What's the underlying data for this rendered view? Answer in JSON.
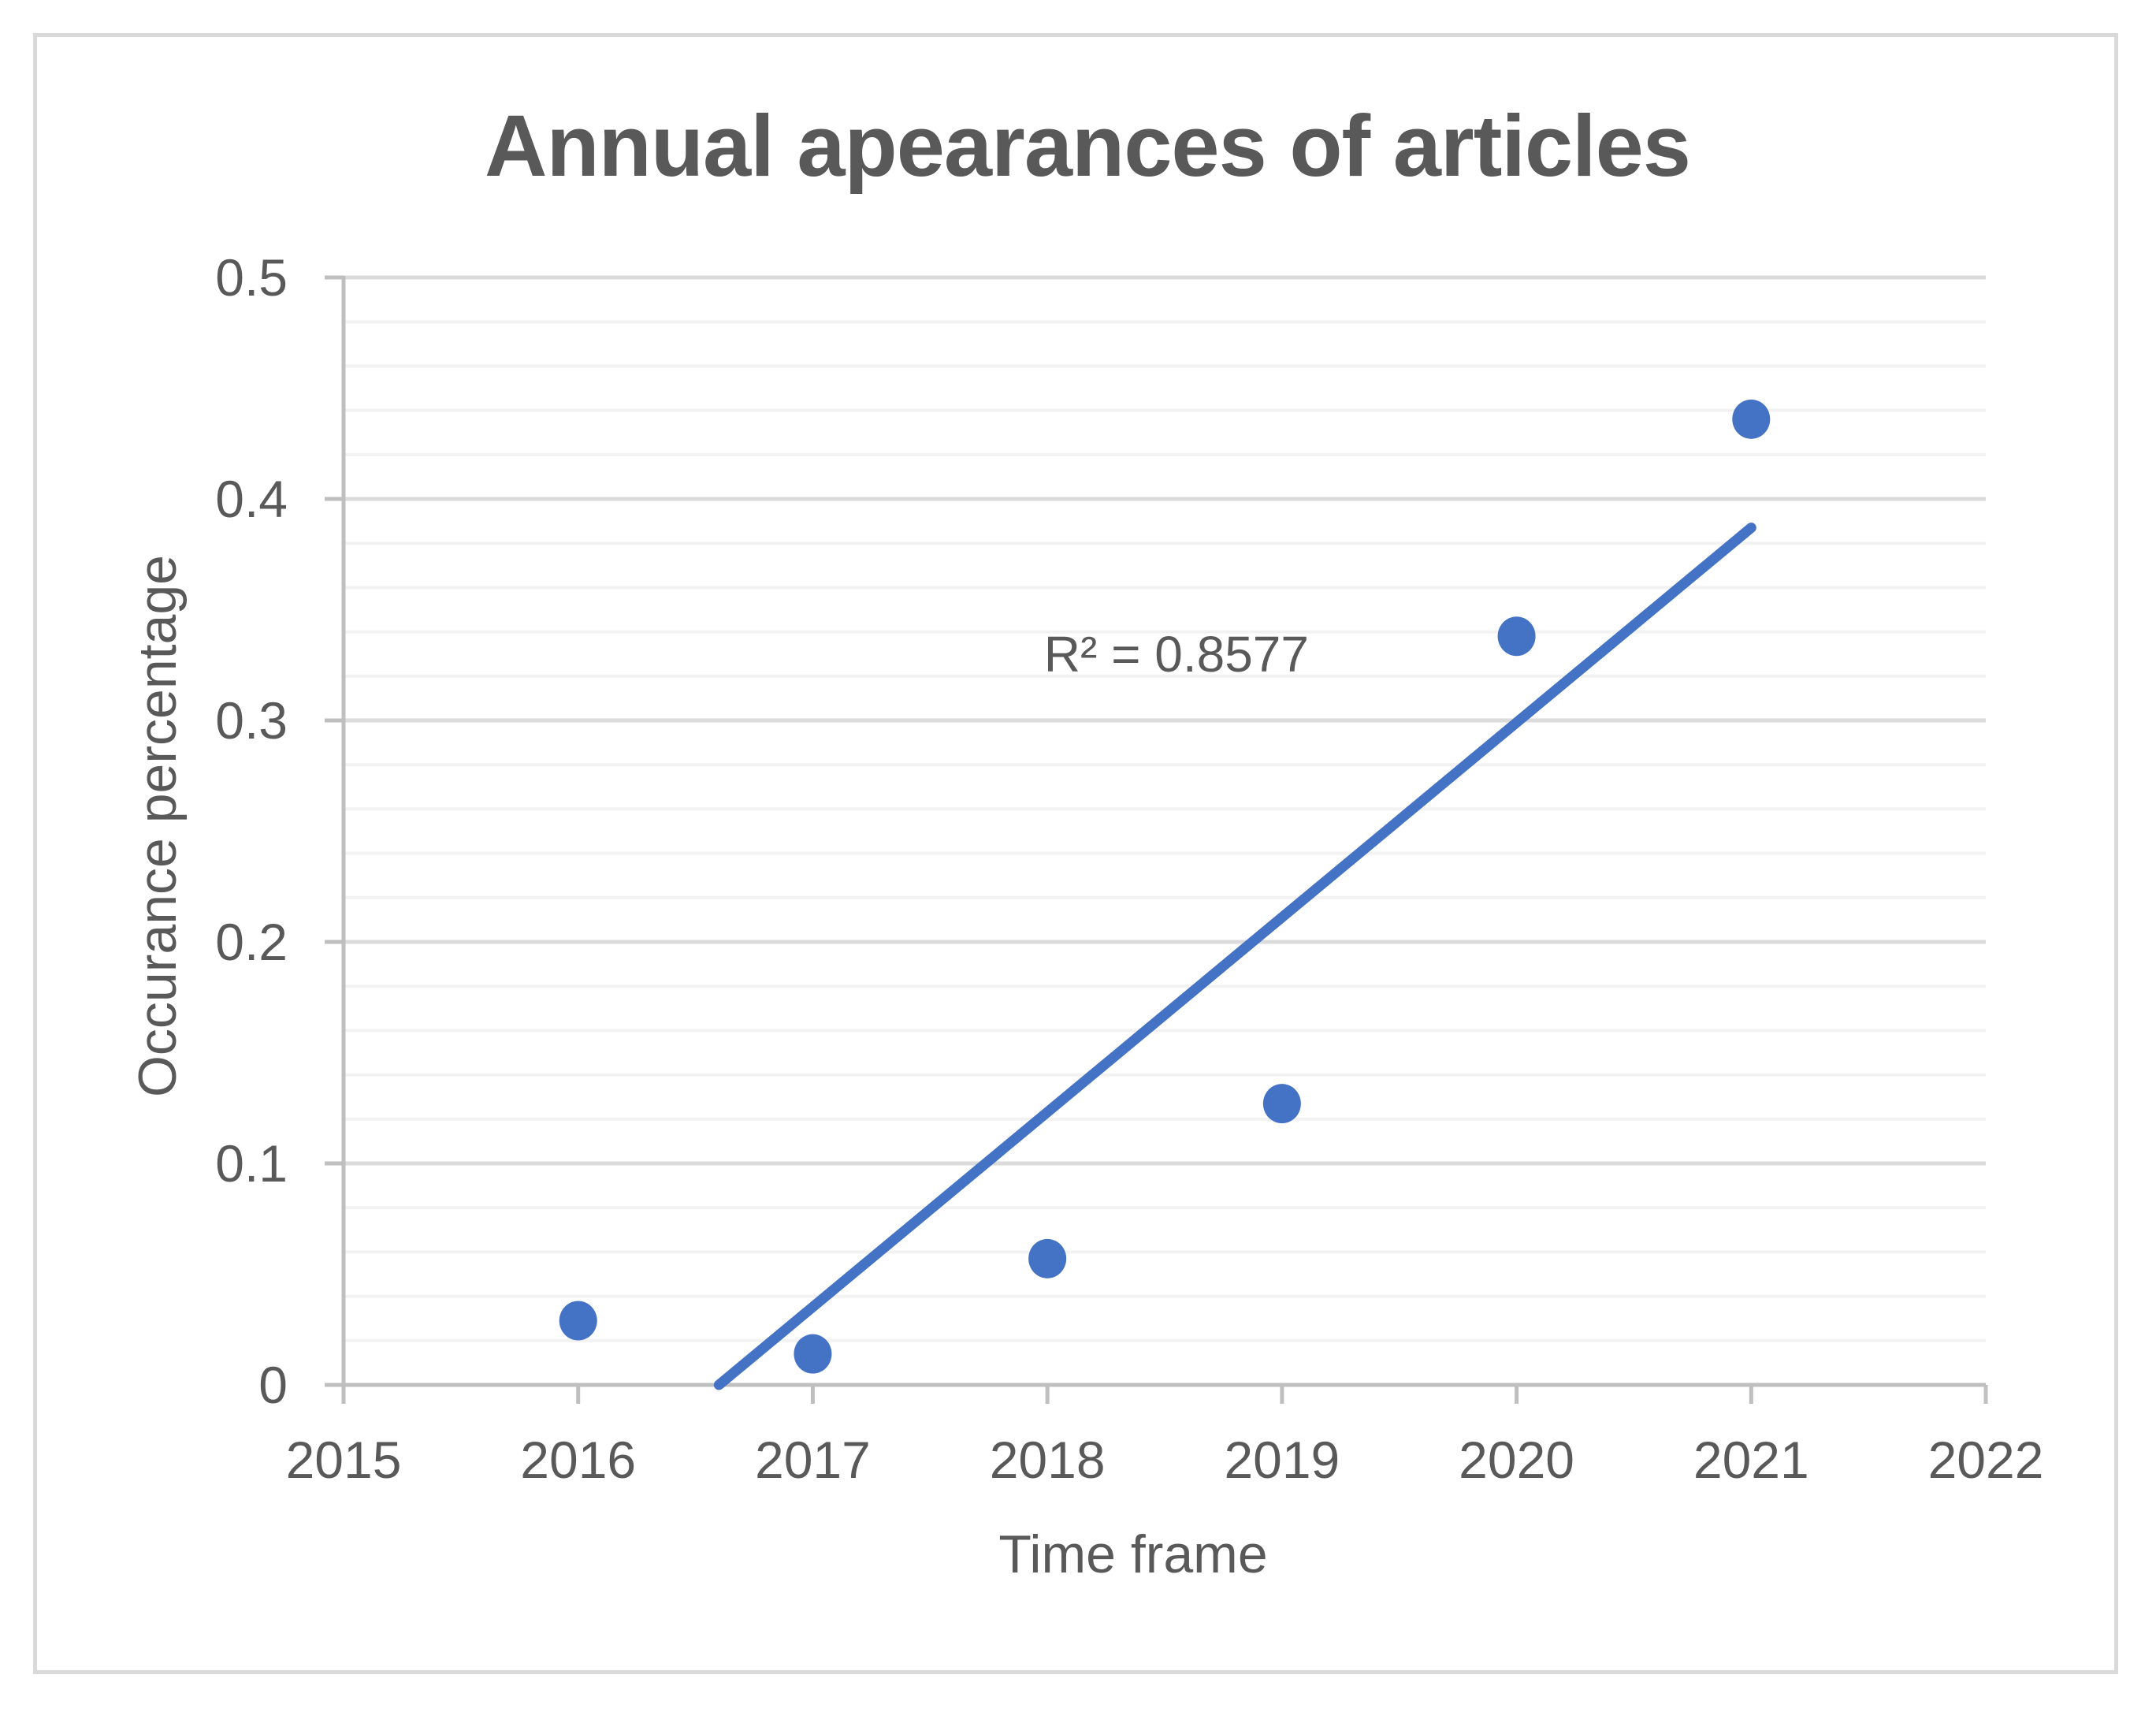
{
  "chart_data": {
    "type": "scatter",
    "title": "Annual apearances of articles",
    "xlabel": "Time frame",
    "ylabel": "Occurance percentage",
    "xlim": [
      2015,
      2022
    ],
    "ylim": [
      0,
      0.5
    ],
    "grid": {
      "horizontal_major": true,
      "horizontal_minor": true,
      "vertical": false
    },
    "legend": "none",
    "y_minor_step": 0.02,
    "x_ticks": [
      {
        "value": 2015,
        "label": "2015"
      },
      {
        "value": 2016,
        "label": "2016"
      },
      {
        "value": 2017,
        "label": "2017"
      },
      {
        "value": 2018,
        "label": "2018"
      },
      {
        "value": 2019,
        "label": "2019"
      },
      {
        "value": 2020,
        "label": "2020"
      },
      {
        "value": 2021,
        "label": "2021"
      },
      {
        "value": 2022,
        "label": "2022"
      }
    ],
    "y_ticks": [
      {
        "value": 0,
        "label": "0"
      },
      {
        "value": 0.1,
        "label": "0.1"
      },
      {
        "value": 0.2,
        "label": "0.2"
      },
      {
        "value": 0.3,
        "label": "0.3"
      },
      {
        "value": 0.4,
        "label": "0.4"
      },
      {
        "value": 0.5,
        "label": "0.5"
      }
    ],
    "points": [
      {
        "x": 2016,
        "y": 0.029
      },
      {
        "x": 2017,
        "y": 0.014
      },
      {
        "x": 2018,
        "y": 0.057
      },
      {
        "x": 2019,
        "y": 0.127
      },
      {
        "x": 2020,
        "y": 0.338
      },
      {
        "x": 2021,
        "y": 0.436
      }
    ],
    "trendline": {
      "type": "linear",
      "start": {
        "x": 2016.6,
        "y": 0
      },
      "end": {
        "x": 2021.0,
        "y": 0.387
      },
      "label": "R² = 0.8577",
      "label_pos": {
        "x": 2018.55,
        "y": 0.33
      }
    },
    "colors": {
      "marker": "#4472C4",
      "trendline": "#4472C4",
      "major_gridline": "#DBDBDB",
      "minor_gridline": "#F2F2F2",
      "axis_line": "#BFBFBF",
      "text": "#595959",
      "border": "#D9D9D9"
    }
  }
}
